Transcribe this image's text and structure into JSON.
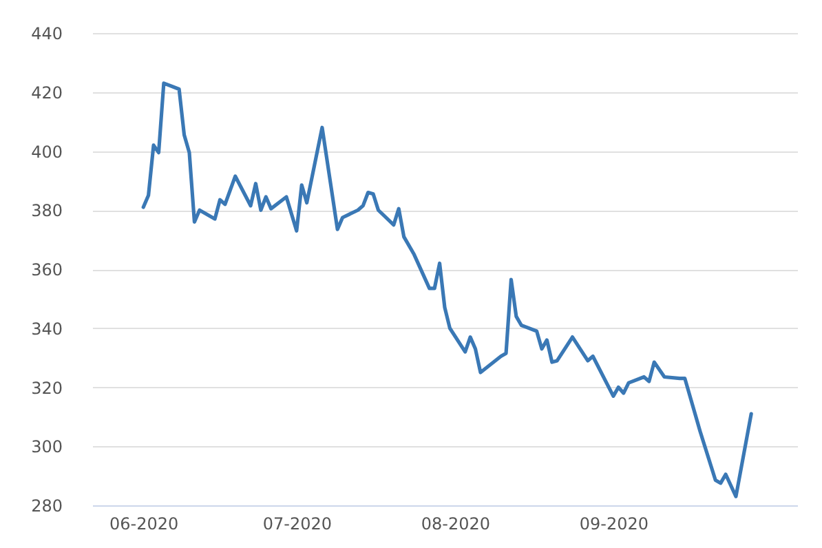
{
  "chart_data": {
    "type": "line",
    "x": [
      "2020-06-01",
      "2020-06-02",
      "2020-06-03",
      "2020-06-04",
      "2020-06-05",
      "2020-06-08",
      "2020-06-09",
      "2020-06-10",
      "2020-06-11",
      "2020-06-12",
      "2020-06-15",
      "2020-06-16",
      "2020-06-17",
      "2020-06-19",
      "2020-06-22",
      "2020-06-23",
      "2020-06-24",
      "2020-06-25",
      "2020-06-26",
      "2020-06-29",
      "2020-07-01",
      "2020-07-02",
      "2020-07-03",
      "2020-07-06",
      "2020-07-09",
      "2020-07-10",
      "2020-07-13",
      "2020-07-14",
      "2020-07-15",
      "2020-07-16",
      "2020-07-17",
      "2020-07-20",
      "2020-07-21",
      "2020-07-22",
      "2020-07-24",
      "2020-07-27",
      "2020-07-28",
      "2020-07-29",
      "2020-07-30",
      "2020-07-31",
      "2020-08-03",
      "2020-08-04",
      "2020-08-05",
      "2020-08-06",
      "2020-08-10",
      "2020-08-11",
      "2020-08-12",
      "2020-08-13",
      "2020-08-14",
      "2020-08-17",
      "2020-08-18",
      "2020-08-19",
      "2020-08-20",
      "2020-08-21",
      "2020-08-24",
      "2020-08-27",
      "2020-08-28",
      "2020-09-01",
      "2020-09-02",
      "2020-09-03",
      "2020-09-04",
      "2020-09-07",
      "2020-09-08",
      "2020-09-09",
      "2020-09-11",
      "2020-09-14",
      "2020-09-15",
      "2020-09-18",
      "2020-09-21",
      "2020-09-22",
      "2020-09-23",
      "2020-09-25",
      "2020-09-28"
    ],
    "series": [
      {
        "color": "#3a78b5",
        "values": [
          381,
          385,
          402,
          399.5,
          423,
          421,
          405.5,
          399.5,
          376,
          380,
          377,
          383.5,
          382,
          391.5,
          381.5,
          389,
          380,
          384.5,
          380.5,
          384.5,
          373,
          388.5,
          382.5,
          408,
          373.5,
          377.5,
          380,
          381.5,
          386,
          385.5,
          380,
          375,
          380.5,
          371,
          365,
          353.5,
          353.5,
          362,
          347,
          340,
          332,
          337,
          333,
          325,
          330.5,
          331.5,
          356.5,
          344,
          341,
          339,
          333,
          336,
          328.5,
          329,
          337,
          329,
          330.5,
          317,
          320,
          318,
          321.5,
          323.5,
          322,
          328.5,
          323.5,
          323,
          323,
          305,
          288.5,
          287.5,
          290.5,
          283,
          311
        ]
      }
    ],
    "xlim": [
      "2020-05-22",
      "2020-10-07"
    ],
    "xticks": [
      {
        "value": "2020-06-01",
        "label": "06-2020"
      },
      {
        "value": "2020-07-01",
        "label": "07-2020"
      },
      {
        "value": "2020-08-01",
        "label": "08-2020"
      },
      {
        "value": "2020-09-01",
        "label": "09-2020"
      }
    ],
    "ylim": [
      280,
      440
    ],
    "yticks": [
      280,
      300,
      320,
      340,
      360,
      380,
      400,
      420,
      440
    ],
    "grid": "y",
    "marker": "none",
    "line_style": "solid"
  }
}
